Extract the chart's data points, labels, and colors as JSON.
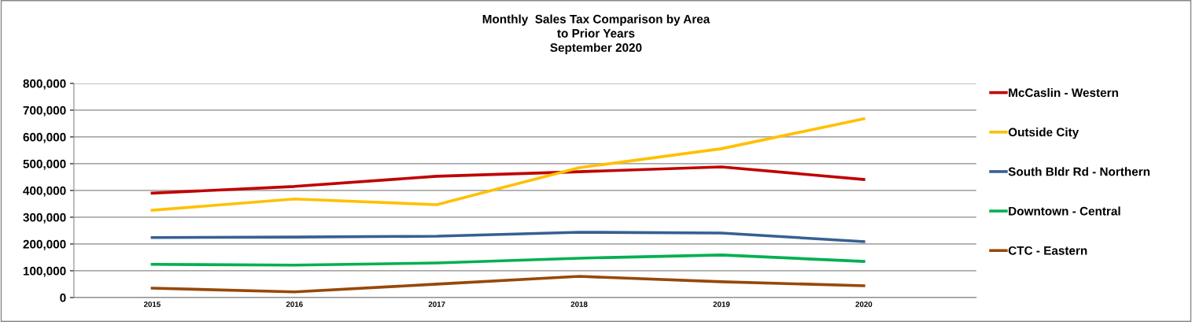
{
  "chart_data": {
    "type": "line",
    "title": "Monthly  Sales Tax Comparison by Area\nto Prior Years\nSeptember 2020",
    "categories": [
      "2015",
      "2016",
      "2017",
      "2018",
      "2019",
      "2020"
    ],
    "series": [
      {
        "name": "McCaslin - Western",
        "color": "#c00000",
        "values": [
          390000,
          415000,
          453000,
          470000,
          488000,
          441000
        ]
      },
      {
        "name": "Outside City",
        "color": "#ffc000",
        "values": [
          326000,
          368000,
          347000,
          485000,
          556000,
          668000
        ]
      },
      {
        "name": "South Bldr Rd - Northern",
        "color": "#376092",
        "values": [
          224000,
          226000,
          229000,
          244000,
          241000,
          209000
        ]
      },
      {
        "name": "Downtown - Central",
        "color": "#00b050",
        "values": [
          124000,
          121000,
          129000,
          147000,
          159000,
          135000
        ]
      },
      {
        "name": "CTC - Eastern",
        "color": "#984807",
        "values": [
          35000,
          21000,
          50000,
          79000,
          59000,
          44000
        ]
      }
    ],
    "ylim": [
      0,
      800000
    ],
    "yticks": [
      {
        "value": 0,
        "label": "0"
      },
      {
        "value": 100000,
        "label": "100,000"
      },
      {
        "value": 200000,
        "label": "200,000"
      },
      {
        "value": 300000,
        "label": "300,000"
      },
      {
        "value": 400000,
        "label": "400,000"
      },
      {
        "value": 500000,
        "label": "500,000"
      },
      {
        "value": 600000,
        "label": "600,000"
      },
      {
        "value": 700000,
        "label": "700,000"
      },
      {
        "value": 800000,
        "label": "800,000"
      }
    ],
    "grid": "y",
    "legend": "right",
    "marker": "none",
    "line_style": "solid"
  }
}
